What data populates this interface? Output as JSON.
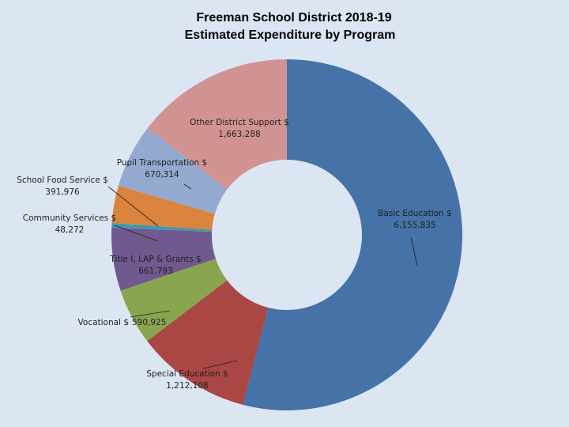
{
  "chart_data": {
    "type": "donut",
    "title": "Freeman School District 2018-19",
    "subtitle": "Estimated Expenditure by Program",
    "categories": [
      "Basic Education $",
      "Special Education $",
      "Vocational $",
      "Title I, LAP & Grants $",
      "Community Services $",
      "School Food Service $",
      "Pupil Transportation $",
      "Other District Support $"
    ],
    "values": [
      6155835,
      1212108,
      590925,
      661793,
      48272,
      391976,
      670314,
      1663288
    ],
    "value_labels": [
      "6,155,835",
      "1,212,108",
      "590,925",
      "661,793",
      "48,272",
      "391,976",
      "670,314",
      "1,663,288"
    ],
    "colors": [
      "#4572a7",
      "#aa4643",
      "#89a54e",
      "#71588f",
      "#4198af",
      "#db843d",
      "#93a9cf",
      "#d19392"
    ]
  }
}
